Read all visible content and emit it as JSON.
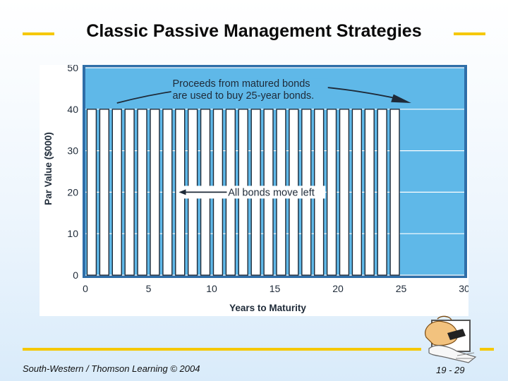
{
  "slide": {
    "title": "Classic Passive Management Strategies",
    "footer_left": "South-Western / Thomson Learning © 2004",
    "footer_right": "19 - 29",
    "accent_color": "#f5c800",
    "plot_bg_color": "#5fb8e8",
    "bar_fill_color": "#ffffff",
    "bar_stroke_color": "#1e2a38",
    "logo_icon": "reading-figure-icon"
  },
  "chart_data": {
    "type": "bar",
    "title": "",
    "xlabel": "Years to Maturity",
    "ylabel": "Par Value ($000)",
    "xlim": [
      0,
      30
    ],
    "ylim": [
      0,
      50
    ],
    "x_ticks": [
      0,
      5,
      10,
      15,
      20,
      25,
      30
    ],
    "y_ticks": [
      0,
      10,
      20,
      30,
      40,
      50
    ],
    "grid": true,
    "categories": [
      1,
      2,
      3,
      4,
      5,
      6,
      7,
      8,
      9,
      10,
      11,
      12,
      13,
      14,
      15,
      16,
      17,
      18,
      19,
      20,
      21,
      22,
      23,
      24,
      25
    ],
    "values": [
      40,
      40,
      40,
      40,
      40,
      40,
      40,
      40,
      40,
      40,
      40,
      40,
      40,
      40,
      40,
      40,
      40,
      40,
      40,
      40,
      40,
      40,
      40,
      40,
      40
    ],
    "annotations": [
      {
        "text_lines": [
          "Proceeds from matured bonds",
          "are used to buy 25-year bonds."
        ],
        "arrow": "curved-right"
      },
      {
        "text_lines": [
          "All bonds move left"
        ],
        "arrow": "left"
      }
    ]
  }
}
